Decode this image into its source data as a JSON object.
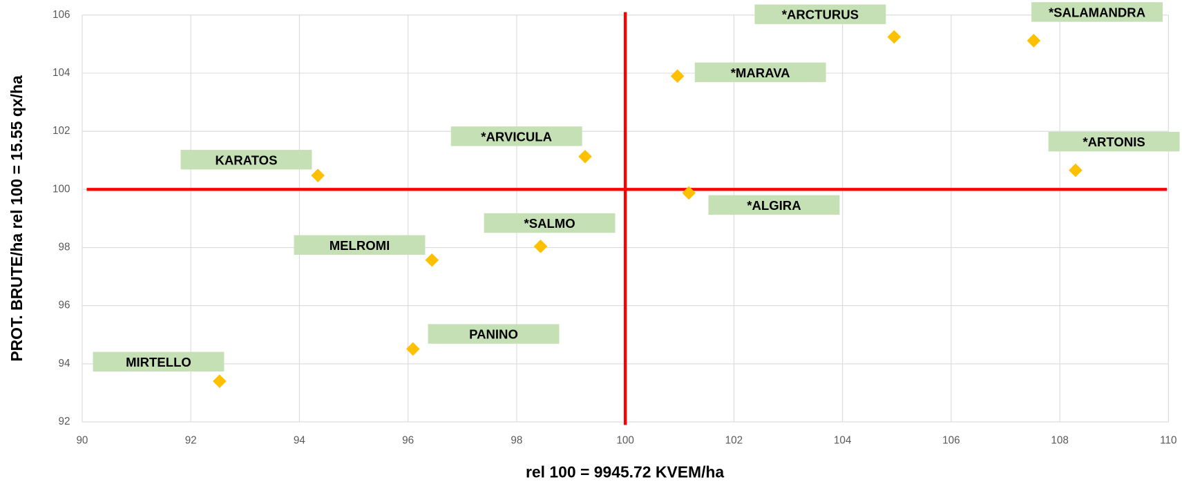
{
  "chart_data": {
    "type": "scatter",
    "x_label": "rel 100 = 9945.72 KVEM/ha",
    "y_label": "PROT. BRUTE/ha  rel 100 = 15.55 qx/ha",
    "labels": [
      "MIRTELLO",
      "PANINO",
      "MELROMI",
      "*SALMO",
      "KARATOS",
      "*ARVICULA",
      "*MARAVA",
      "*ARCTURUS",
      "*SALAMANDRA",
      "*ARTONIS",
      "*ALGIRA"
    ],
    "x": [
      92.53,
      96.09,
      96.44,
      98.44,
      94.34,
      99.26,
      100.96,
      104.95,
      107.52,
      108.29,
      101.17
    ],
    "values": [
      93.4,
      94.51,
      97.57,
      98.04,
      100.48,
      101.13,
      103.9,
      105.25,
      105.12,
      100.66,
      99.88
    ],
    "color": "#ffc000",
    "label_box_color": "#c5e0b4",
    "reference_lines": {
      "x": 100,
      "y": 100,
      "color": "#ff0000"
    },
    "xlim": [
      90,
      110
    ],
    "xticks": [
      90,
      92,
      94,
      96,
      98,
      100,
      102,
      104,
      106,
      108,
      110
    ],
    "ylim": [
      92,
      106
    ],
    "yticks": [
      92,
      94,
      96,
      98,
      100,
      102,
      104,
      106
    ],
    "grid": true
  }
}
